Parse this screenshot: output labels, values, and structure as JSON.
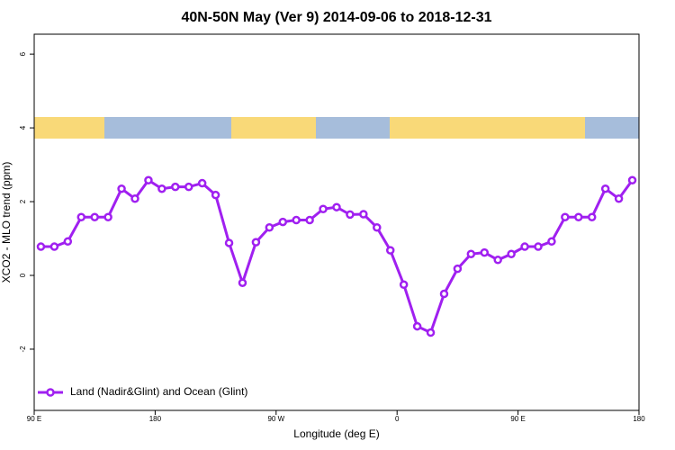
{
  "chart_data": {
    "type": "line",
    "title": "40N-50N May (Ver 9)   2014-09-06 to 2018-12-31",
    "x_label": "Longitude (deg E)",
    "y_label": "XCO2 - MLO trend (ppm)",
    "x": [
      95,
      105,
      115,
      125,
      135,
      145,
      155,
      165,
      175,
      185,
      195,
      205,
      215,
      225,
      235,
      245,
      255,
      265,
      275,
      285,
      295,
      305,
      315,
      325,
      335,
      345,
      355,
      365,
      375,
      385,
      395,
      405,
      415,
      425,
      435,
      445,
      455,
      465,
      475,
      485,
      495,
      505,
      515,
      525,
      535
    ],
    "series": [
      {
        "name": "Land (Nadir&Glint) and Ocean (Glint)",
        "color": "#a020f0",
        "values": [
          0.78,
          0.78,
          0.92,
          1.58,
          1.58,
          1.58,
          2.35,
          2.08,
          2.58,
          2.35,
          2.4,
          2.4,
          2.5,
          2.18,
          0.88,
          -0.2,
          0.9,
          1.3,
          1.45,
          1.5,
          1.5,
          1.8,
          1.85,
          1.65,
          1.66,
          1.3,
          0.68,
          -0.25,
          -1.38,
          -1.55,
          -0.5,
          0.18,
          0.58,
          0.62,
          0.42,
          0.58,
          0.78,
          0.78,
          0.92,
          1.58,
          1.58,
          1.58,
          2.35,
          2.08,
          2.58
        ]
      }
    ],
    "xlim": [
      90,
      540
    ],
    "xticks": [
      {
        "value": 90,
        "label": "90 E"
      },
      180,
      {
        "value": 270,
        "label": "90 W"
      },
      {
        "value": 360,
        "label": "0"
      },
      {
        "value": 450,
        "label": "90 E"
      },
      {
        "value": 540,
        "label": "180"
      }
    ],
    "ylim": [
      -3.66,
      6.54
    ],
    "yticks": [
      -2,
      0,
      2,
      4,
      6
    ],
    "legend": "bottom-left"
  }
}
